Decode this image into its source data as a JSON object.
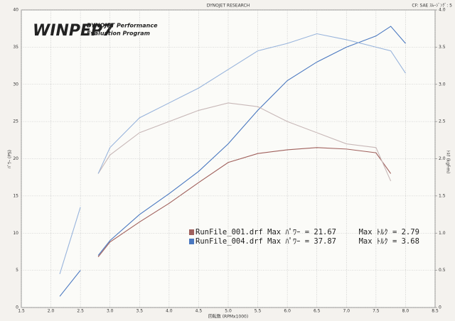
{
  "chart_data": {
    "type": "line",
    "header": "DYNOJET RESEARCH",
    "correction": "CF: SAE  ｽﾑｰｼﾞﾝｸﾞ: 5",
    "logo": "WINPEP7",
    "logo_line1": "DYNOJET Performance",
    "logo_line2": "Evaluation Program",
    "ylabel": "ﾊﾟﾜｰ (PS)",
    "y2label": "ﾄﾙｸ (kgf-m)",
    "xlabel": "回転数 (RPMx1000)",
    "x": [
      2.15,
      2.5,
      2.65,
      2.8,
      3.0,
      3.5,
      4.0,
      4.5,
      5.0,
      5.5,
      6.0,
      6.5,
      7.0,
      7.5,
      7.75,
      8.0
    ],
    "xlim": [
      1.5,
      8.5
    ],
    "xticks": [
      1.5,
      {
        "value": 2,
        "label": "2.0"
      },
      2.5,
      {
        "value": 3,
        "label": "3.0"
      },
      3.5,
      {
        "value": 4,
        "label": "4.0"
      },
      4.5,
      {
        "value": 5,
        "label": "5.0"
      },
      5.5,
      {
        "value": 6,
        "label": "6.0"
      },
      6.5,
      {
        "value": 7,
        "label": "7.0"
      },
      7.5,
      {
        "value": 8,
        "label": "8.0"
      },
      8.5
    ],
    "ylim": [
      0,
      40
    ],
    "yticks": [
      0,
      5,
      10,
      15,
      20,
      25,
      30,
      35,
      40
    ],
    "y2lim": [
      0,
      4
    ],
    "y2ticks": [
      0,
      0.5,
      {
        "value": 1,
        "label": "1.0"
      },
      1.5,
      {
        "value": 2,
        "label": "2.0"
      },
      2.5,
      {
        "value": 3,
        "label": "3.0"
      },
      3.5,
      {
        "value": 4,
        "label": "4.0"
      }
    ],
    "grid": true,
    "series": [
      {
        "color": "#a0605c",
        "values": [
          null,
          null,
          null,
          6.8,
          8.8,
          11.5,
          14,
          16.8,
          19.5,
          20.7,
          21.2,
          21.5,
          21.3,
          20.8,
          18,
          null
        ]
      },
      {
        "color": "#4a78c0",
        "values": [
          1.5,
          5,
          null,
          7,
          9,
          12.5,
          15.3,
          18.3,
          22,
          26.5,
          30.5,
          33,
          35,
          36.5,
          37.8,
          35.5
        ]
      },
      {
        "color": "#c8b8b8",
        "axis": "y2",
        "values": [
          null,
          null,
          null,
          1.8,
          2.05,
          2.35,
          2.5,
          2.65,
          2.75,
          2.7,
          2.5,
          2.35,
          2.2,
          2.15,
          1.7,
          null
        ]
      },
      {
        "color": "#98b4dc",
        "axis": "y2",
        "values": [
          0.45,
          1.35,
          null,
          1.8,
          2.15,
          2.55,
          2.75,
          2.95,
          3.2,
          3.45,
          3.55,
          3.68,
          3.6,
          3.5,
          3.45,
          3.15
        ]
      }
    ],
    "legend": [
      {
        "text": "RunFile_001.drf Max ﾊﾟﾜｰ = 21.67     Max ﾄﾙｸ = 2.79",
        "color": "#a0605c"
      },
      {
        "text": "RunFile_004.drf Max ﾊﾟﾜｰ = 37.87     Max ﾄﾙｸ = 3.68",
        "color": "#4a78c0"
      }
    ]
  }
}
